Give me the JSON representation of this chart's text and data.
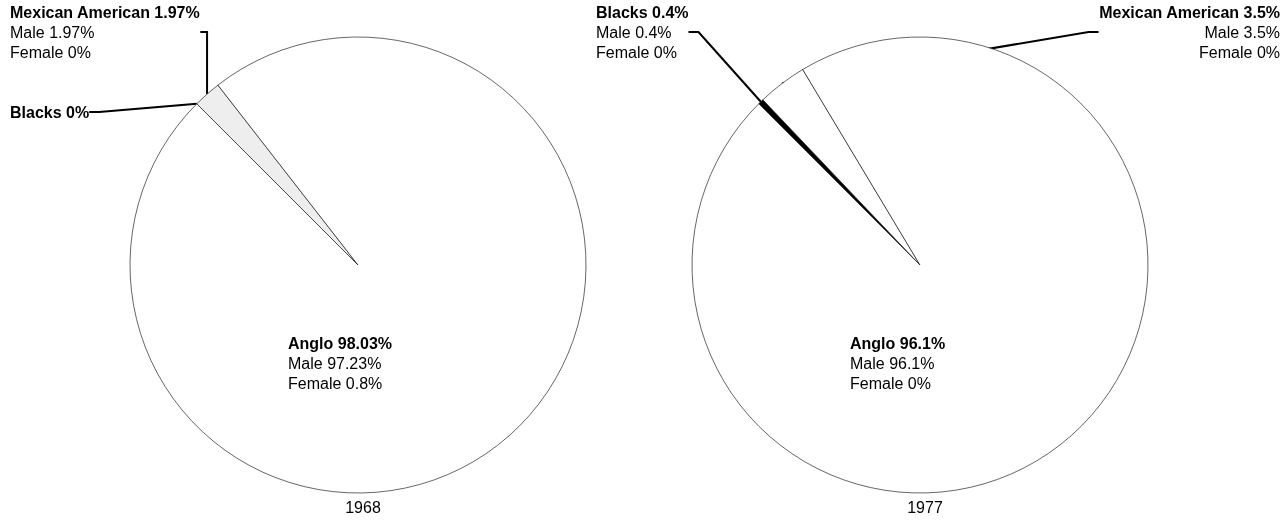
{
  "chart_data": [
    {
      "type": "pie",
      "title": "1968",
      "categories": [
        "Blacks",
        "Mexican American",
        "Anglo"
      ],
      "values": [
        0,
        1.97,
        98.03
      ],
      "colors": [
        "#000000",
        "#eeeeee",
        "#ffffff"
      ],
      "value_labels": [
        "0%",
        "1.97%\nMale 1.97%\nFemale 0%",
        "98.03%\nMale 97.23%\nFemale 0.8%"
      ]
    },
    {
      "type": "pie",
      "title": "1977",
      "categories": [
        "Blacks",
        "Mexican American",
        "Anglo"
      ],
      "values": [
        0.4,
        3.5,
        96.1
      ],
      "colors": [
        "#000000",
        "#ffffff",
        "#ffffff"
      ],
      "value_labels": [
        "0.4%\nMale 0.4%\nFemale 0%",
        "3.5%\nMale 3.5%\nFemale 0%",
        "96.1%\nMale 96.1%\nFemale 0%"
      ]
    }
  ]
}
